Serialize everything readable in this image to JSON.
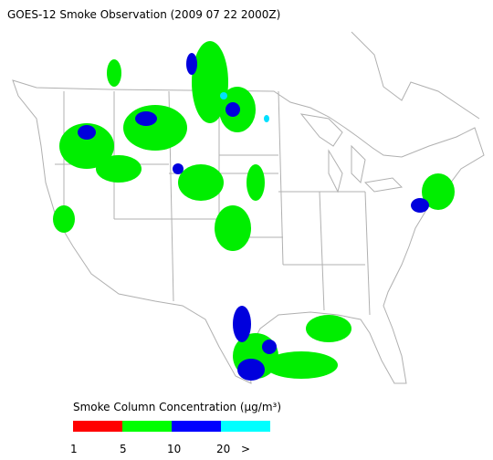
{
  "title": "GOES-12 Smoke Observation (2009 07 22  2000Z)",
  "legend": {
    "title": "Smoke Column Concentration (μg/m³)",
    "colors": [
      "#ff0000",
      "#00ff00",
      "#0000ff",
      "#00ffff"
    ],
    "labels": [
      "1",
      "5",
      "10",
      "20",
      ">"
    ]
  }
}
